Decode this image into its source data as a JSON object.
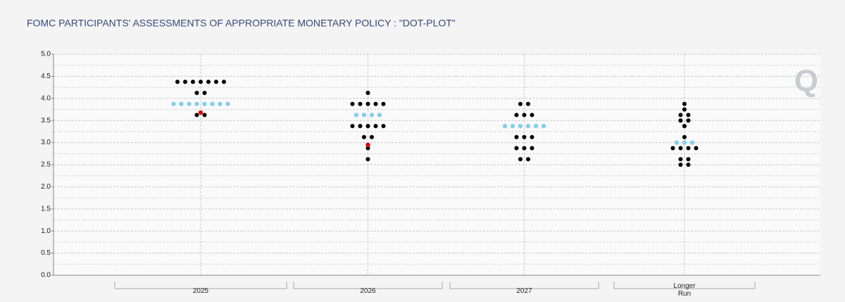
{
  "chart_data": {
    "type": "dot",
    "title": "FOMC PARTICIPANTS' ASSESSMENTS OF APPROPRIATE MONETARY POLICY : \"DOT-PLOT\"",
    "logo": "Q",
    "categories": [
      "2025",
      "2026",
      "2027",
      "Longer Run"
    ],
    "series": [
      {
        "color": "#000000",
        "values": [
          [
            4.375,
            4.375,
            4.375,
            4.375,
            4.375,
            4.375,
            4.375,
            4.125,
            4.125,
            3.625,
            3.625
          ],
          [
            4.125,
            3.875,
            3.875,
            3.875,
            3.875,
            3.875,
            3.375,
            3.375,
            3.375,
            3.375,
            3.375,
            3.125,
            3.125,
            2.875,
            2.625
          ],
          [
            3.875,
            3.875,
            3.625,
            3.625,
            3.625,
            3.125,
            3.125,
            3.125,
            2.875,
            2.875,
            2.875,
            2.625,
            2.625
          ],
          [
            3.875,
            3.75,
            3.625,
            3.625,
            3.5,
            3.5,
            3.375,
            3.125,
            2.875,
            2.875,
            2.875,
            2.875,
            2.625,
            2.625,
            2.5,
            2.5
          ]
        ]
      },
      {
        "color": "#87ceeb",
        "values": [
          [
            3.875,
            3.875,
            3.875,
            3.875,
            3.875,
            3.875,
            3.875,
            3.875
          ],
          [
            3.625,
            3.625,
            3.625,
            3.625
          ],
          [
            3.375,
            3.375,
            3.375,
            3.375,
            3.375,
            3.375
          ],
          [
            3.0,
            3.0,
            3.0
          ]
        ]
      },
      {
        "color": "#e00000",
        "values": [
          [
            3.68
          ],
          [
            2.95
          ],
          [],
          []
        ]
      }
    ],
    "ylim": [
      0,
      5
    ],
    "yticks": [
      {
        "value": 0,
        "label": "0.0"
      },
      {
        "value": 0.5,
        "label": "0.5"
      },
      {
        "value": 1,
        "label": "1.0"
      },
      {
        "value": 1.5,
        "label": "1.5"
      },
      {
        "value": 2,
        "label": "2.0"
      },
      {
        "value": 2.5,
        "label": "2.5"
      },
      {
        "value": 3,
        "label": "3.0"
      },
      {
        "value": 3.5,
        "label": "3.5"
      },
      {
        "value": 4,
        "label": "4.0"
      },
      {
        "value": 4.5,
        "label": "4.5"
      },
      {
        "value": 5,
        "label": "5.0"
      }
    ],
    "minor_yticks": [
      0.25,
      0.75,
      1.25,
      1.75,
      2.25,
      2.75,
      3.25,
      3.75,
      4.25,
      4.75
    ],
    "grid": true
  }
}
